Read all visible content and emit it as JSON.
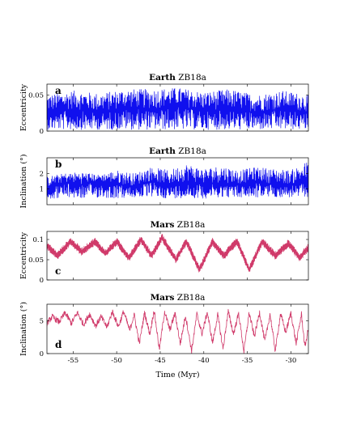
{
  "chart_data": [
    {
      "type": "line",
      "title_bold": "Earth",
      "title_rest": " ZB18a",
      "panel_letter": "a",
      "ylabel": "Eccentricity",
      "xlim": [
        -58,
        -28
      ],
      "ylim": [
        0,
        0.065
      ],
      "yticks": [
        0,
        0.05
      ],
      "ytick_labels": [
        "0",
        "0.05"
      ],
      "series": [
        {
          "color": "#1010ee",
          "style": "dense-band",
          "center": [
            [
              -58,
              0.025
            ],
            [
              -55,
              0.03
            ],
            [
              -52,
              0.025
            ],
            [
              -49,
              0.032
            ],
            [
              -46,
              0.03
            ],
            [
              -43,
              0.034
            ],
            [
              -40,
              0.028
            ],
            [
              -37,
              0.03
            ],
            [
              -34,
              0.026
            ],
            [
              -31,
              0.03
            ],
            [
              -28,
              0.026
            ]
          ],
          "envelope_low": [
            [
              -58,
              0.002
            ],
            [
              -28,
              0.002
            ]
          ],
          "envelope_high": [
            [
              -58,
              0.05
            ],
            [
              -55,
              0.056
            ],
            [
              -52,
              0.052
            ],
            [
              -49,
              0.058
            ],
            [
              -46,
              0.058
            ],
            [
              -43,
              0.06
            ],
            [
              -40,
              0.054
            ],
            [
              -37,
              0.058
            ],
            [
              -34,
              0.05
            ],
            [
              -31,
              0.056
            ],
            [
              -28,
              0.05
            ]
          ]
        }
      ]
    },
    {
      "type": "line",
      "title_bold": "Earth",
      "title_rest": " ZB18a",
      "panel_letter": "b",
      "ylabel": "Inclination (°)",
      "xlim": [
        -58,
        -28
      ],
      "ylim": [
        0,
        3
      ],
      "yticks": [
        1,
        2
      ],
      "ytick_labels": [
        "1",
        "2"
      ],
      "series": [
        {
          "color": "#1010ee",
          "style": "dense-band",
          "center": [
            [
              -58,
              1.1
            ],
            [
              -56,
              1.4
            ],
            [
              -54,
              1.3
            ],
            [
              -52,
              1.5
            ],
            [
              -50,
              1.3
            ],
            [
              -48,
              1.2
            ],
            [
              -46,
              1.5
            ],
            [
              -44,
              1.2
            ],
            [
              -42,
              1.5
            ],
            [
              -40,
              1.3
            ],
            [
              -38,
              1.4
            ],
            [
              -36,
              1.3
            ],
            [
              -34,
              1.5
            ],
            [
              -32,
              1.3
            ],
            [
              -30,
              1.3
            ],
            [
              -28,
              1.4
            ]
          ],
          "envelope_low": [
            [
              -58,
              0.35
            ],
            [
              -56,
              0.45
            ],
            [
              -54,
              0.4
            ],
            [
              -52,
              0.45
            ],
            [
              -50,
              0.4
            ],
            [
              -48,
              0.45
            ],
            [
              -46,
              0.5
            ],
            [
              -44,
              0.4
            ],
            [
              -42,
              0.45
            ],
            [
              -40,
              0.4
            ],
            [
              -38,
              0.5
            ],
            [
              -36,
              0.45
            ],
            [
              -34,
              0.45
            ],
            [
              -32,
              0.5
            ],
            [
              -30,
              0.45
            ],
            [
              -28,
              0.5
            ]
          ],
          "envelope_high": [
            [
              -58,
              1.8
            ],
            [
              -56,
              2.0
            ],
            [
              -54,
              2.1
            ],
            [
              -52,
              1.9
            ],
            [
              -50,
              2.2
            ],
            [
              -48,
              2.0
            ],
            [
              -46,
              2.4
            ],
            [
              -44,
              2.2
            ],
            [
              -42,
              2.6
            ],
            [
              -40,
              2.3
            ],
            [
              -38,
              2.5
            ],
            [
              -36,
              2.2
            ],
            [
              -34,
              2.4
            ],
            [
              -32,
              2.3
            ],
            [
              -30,
              2.2
            ],
            [
              -28,
              2.8
            ]
          ]
        }
      ]
    },
    {
      "type": "line",
      "title_bold": "Mars",
      "title_rest": " ZB18a",
      "panel_letter": "c",
      "ylabel": "Eccentricity",
      "xlim": [
        -58,
        -28
      ],
      "ylim": [
        0,
        0.12
      ],
      "yticks": [
        0,
        0.05,
        0.1
      ],
      "ytick_labels": [
        "0",
        "0.05",
        "0.1"
      ],
      "series": [
        {
          "color": "#d03a6a",
          "style": "band",
          "center": [
            [
              -58,
              0.085
            ],
            [
              -56.8,
              0.06
            ],
            [
              -55.3,
              0.095
            ],
            [
              -54,
              0.07
            ],
            [
              -52.5,
              0.095
            ],
            [
              -51.3,
              0.065
            ],
            [
              -50,
              0.095
            ],
            [
              -48.6,
              0.055
            ],
            [
              -47.2,
              0.1
            ],
            [
              -46,
              0.06
            ],
            [
              -44.8,
              0.105
            ],
            [
              -43.2,
              0.05
            ],
            [
              -42,
              0.095
            ],
            [
              -40.5,
              0.025
            ],
            [
              -39,
              0.095
            ],
            [
              -37.7,
              0.06
            ],
            [
              -36.2,
              0.095
            ],
            [
              -34.8,
              0.025
            ],
            [
              -33.3,
              0.095
            ],
            [
              -31.8,
              0.06
            ],
            [
              -30.3,
              0.09
            ],
            [
              -29,
              0.055
            ],
            [
              -28,
              0.08
            ]
          ],
          "band_halfwidth": 0.01
        }
      ]
    },
    {
      "type": "line",
      "title_bold": "Mars",
      "title_rest": " ZB18a",
      "panel_letter": "d",
      "ylabel": "Inclination (°)",
      "xlim": [
        -58,
        -28
      ],
      "ylim": [
        0,
        7.5
      ],
      "yticks": [
        0,
        5
      ],
      "ytick_labels": [
        "0",
        "5"
      ],
      "series": [
        {
          "color": "#d03a6a",
          "style": "wiggle",
          "center": [
            [
              -58,
              4.6
            ],
            [
              -57.4,
              5.6
            ],
            [
              -56.6,
              4.8
            ],
            [
              -55.9,
              6.2
            ],
            [
              -55.2,
              4.6
            ],
            [
              -54.5,
              6.2
            ],
            [
              -53.8,
              4.4
            ],
            [
              -53.1,
              6.0
            ],
            [
              -52.4,
              4.2
            ],
            [
              -51.8,
              5.6
            ],
            [
              -51.1,
              4.0
            ],
            [
              -50.5,
              6.4
            ],
            [
              -49.8,
              4.1
            ],
            [
              -49.2,
              6.4
            ],
            [
              -48.5,
              3.5
            ],
            [
              -48.0,
              6.0
            ],
            [
              -47.4,
              1.5
            ],
            [
              -46.8,
              6.2
            ],
            [
              -46.2,
              3.0
            ],
            [
              -45.7,
              6.6
            ],
            [
              -45.1,
              0.6
            ],
            [
              -44.5,
              6.4
            ],
            [
              -43.9,
              3.6
            ],
            [
              -43.3,
              6.1
            ],
            [
              -42.7,
              1.5
            ],
            [
              -42.1,
              5.8
            ],
            [
              -41.4,
              0.4
            ],
            [
              -40.8,
              6.0
            ],
            [
              -40.2,
              3.0
            ],
            [
              -39.6,
              6.3
            ],
            [
              -39.0,
              1.6
            ],
            [
              -38.4,
              5.9
            ],
            [
              -37.8,
              0.7
            ],
            [
              -37.2,
              6.4
            ],
            [
              -36.6,
              3.0
            ],
            [
              -36.0,
              6.1
            ],
            [
              -35.4,
              0.3
            ],
            [
              -34.8,
              6.2
            ],
            [
              -34.2,
              2.6
            ],
            [
              -33.6,
              6.3
            ],
            [
              -33.0,
              1.8
            ],
            [
              -32.4,
              6.0
            ],
            [
              -31.8,
              0.4
            ],
            [
              -31.2,
              6.1
            ],
            [
              -30.6,
              3.2
            ],
            [
              -30.0,
              6.2
            ],
            [
              -29.4,
              1.5
            ],
            [
              -28.8,
              6.0
            ],
            [
              -28.4,
              1.0
            ],
            [
              -28.0,
              3.8
            ]
          ],
          "wiggle_amp": 0.45
        }
      ]
    }
  ],
  "shared_xaxis": {
    "xlabel": "Time (Myr)",
    "xticks": [
      -55,
      -50,
      -45,
      -40,
      -35,
      -30
    ],
    "xtick_labels": [
      "-55",
      "-50",
      "-45",
      "-40",
      "-35",
      "-30"
    ]
  },
  "colors": {
    "earth": "#1010ee",
    "mars": "#d03a6a",
    "axes": "#000000"
  }
}
